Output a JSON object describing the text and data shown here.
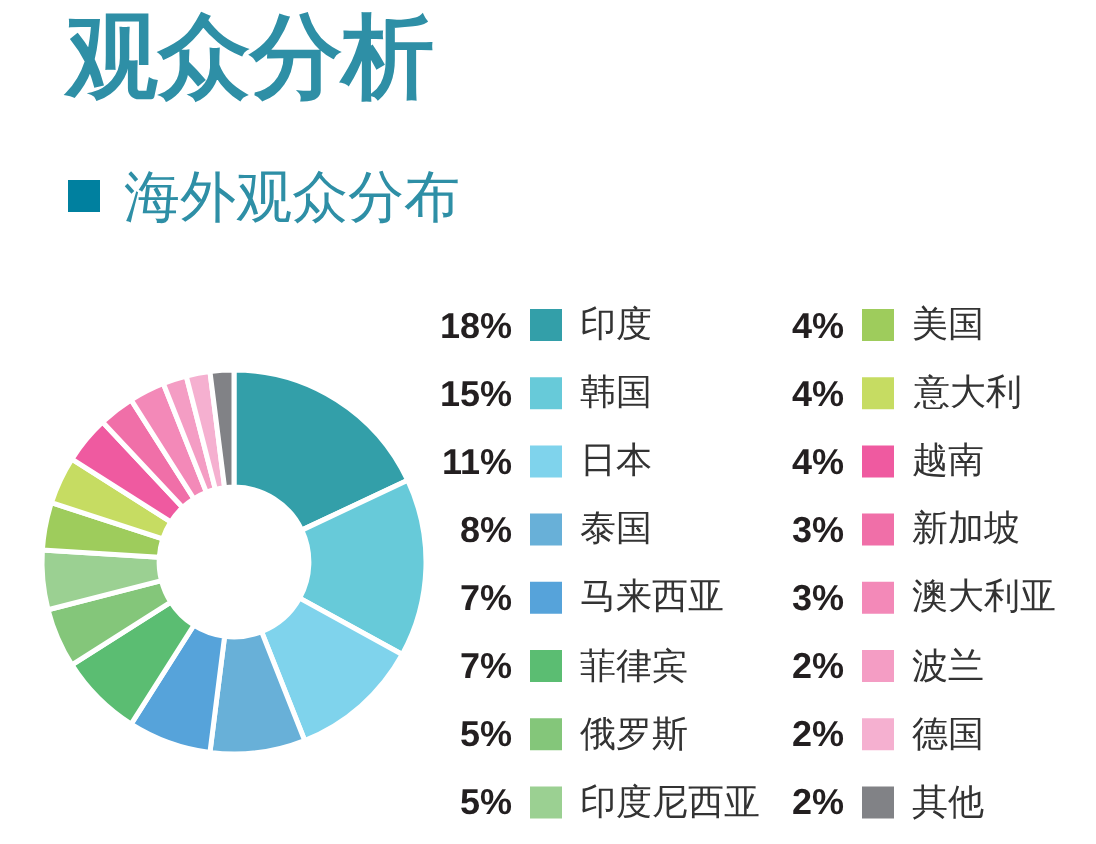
{
  "chart_data": {
    "type": "donut",
    "title": "观众分析",
    "subtitle": "海外观众分布",
    "categories": [
      "印度",
      "韩国",
      "日本",
      "泰国",
      "马来西亚",
      "菲律宾",
      "俄罗斯",
      "印度尼西亚",
      "美国",
      "意大利",
      "越南",
      "新加坡",
      "澳大利亚",
      "波兰",
      "德国",
      "其他"
    ],
    "values": [
      18,
      15,
      11,
      8,
      7,
      7,
      5,
      5,
      4,
      4,
      4,
      3,
      3,
      2,
      2,
      2
    ],
    "colors": [
      "#339fa9",
      "#67cad9",
      "#7fd3ec",
      "#68b0d8",
      "#56a3da",
      "#5bbd72",
      "#84c67a",
      "#9bd092",
      "#9ecc5c",
      "#c6dc62",
      "#ef5aa0",
      "#f06fa8",
      "#f389b8",
      "#f49dc4",
      "#f5b0d0",
      "#818286"
    ],
    "value_labels": [
      "18%",
      "15%",
      "11%",
      "8%",
      "7%",
      "7%",
      "5%",
      "5%",
      "4%",
      "4%",
      "4%",
      "3%",
      "3%",
      "2%",
      "2%",
      "2%"
    ],
    "legend": "right"
  }
}
